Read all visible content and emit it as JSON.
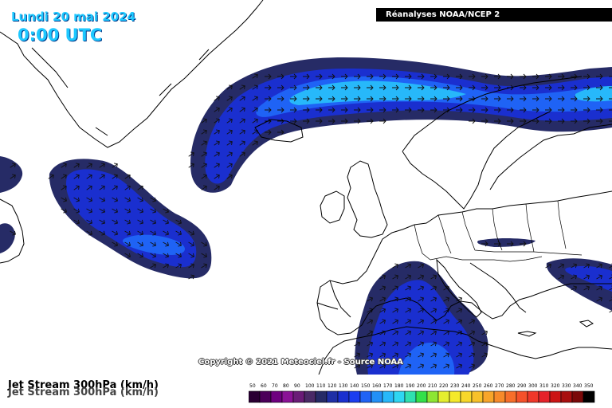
{
  "header": {
    "date": "Lundi 20 mai 2024",
    "time": "0:00 UTC",
    "source": "Réanalyses NOAA/NCEP 2"
  },
  "footer": {
    "title": "Jet Stream 300hPa (km/h)",
    "copyright": "Copyright © 2021 Meteociel.fr - Source NOAA"
  },
  "legend": {
    "unit": "km/h",
    "stops": [
      {
        "value": "50",
        "color": "#2a0033"
      },
      {
        "value": "60",
        "color": "#4b0059"
      },
      {
        "value": "70",
        "color": "#6e007f"
      },
      {
        "value": "80",
        "color": "#8a1296"
      },
      {
        "value": "90",
        "color": "#6a1c77"
      },
      {
        "value": "100",
        "color": "#4a2a66"
      },
      {
        "value": "110",
        "color": "#262b66"
      },
      {
        "value": "120",
        "color": "#1f2fa6"
      },
      {
        "value": "130",
        "color": "#1a2fcf"
      },
      {
        "value": "140",
        "color": "#1b3ef0"
      },
      {
        "value": "150",
        "color": "#1f63f5"
      },
      {
        "value": "160",
        "color": "#2390f7"
      },
      {
        "value": "170",
        "color": "#27b8fa"
      },
      {
        "value": "180",
        "color": "#2ed6f2"
      },
      {
        "value": "190",
        "color": "#2fe0b0"
      },
      {
        "value": "200",
        "color": "#33e04a"
      },
      {
        "value": "210",
        "color": "#8de633"
      },
      {
        "value": "220",
        "color": "#e4ee2e"
      },
      {
        "value": "230",
        "color": "#f5e92a"
      },
      {
        "value": "240",
        "color": "#f7d72a"
      },
      {
        "value": "250",
        "color": "#f7c12a"
      },
      {
        "value": "260",
        "color": "#f7a52a"
      },
      {
        "value": "270",
        "color": "#f78a2a"
      },
      {
        "value": "280",
        "color": "#f76e2a"
      },
      {
        "value": "290",
        "color": "#f5512a"
      },
      {
        "value": "300",
        "color": "#f0382a"
      },
      {
        "value": "310",
        "color": "#e6222a"
      },
      {
        "value": "320",
        "color": "#cc1414"
      },
      {
        "value": "330",
        "color": "#a80e0e"
      },
      {
        "value": "340",
        "color": "#7a0808"
      },
      {
        "value": "350",
        "color": "#000000"
      }
    ]
  },
  "colors": {
    "band_outer": "#262b66",
    "band_mid": "#1a2fcf",
    "band_inner": "#1f63f5",
    "band_core": "#27b8fa",
    "coastline": "#000000",
    "header_text": "#1ec8ff"
  }
}
